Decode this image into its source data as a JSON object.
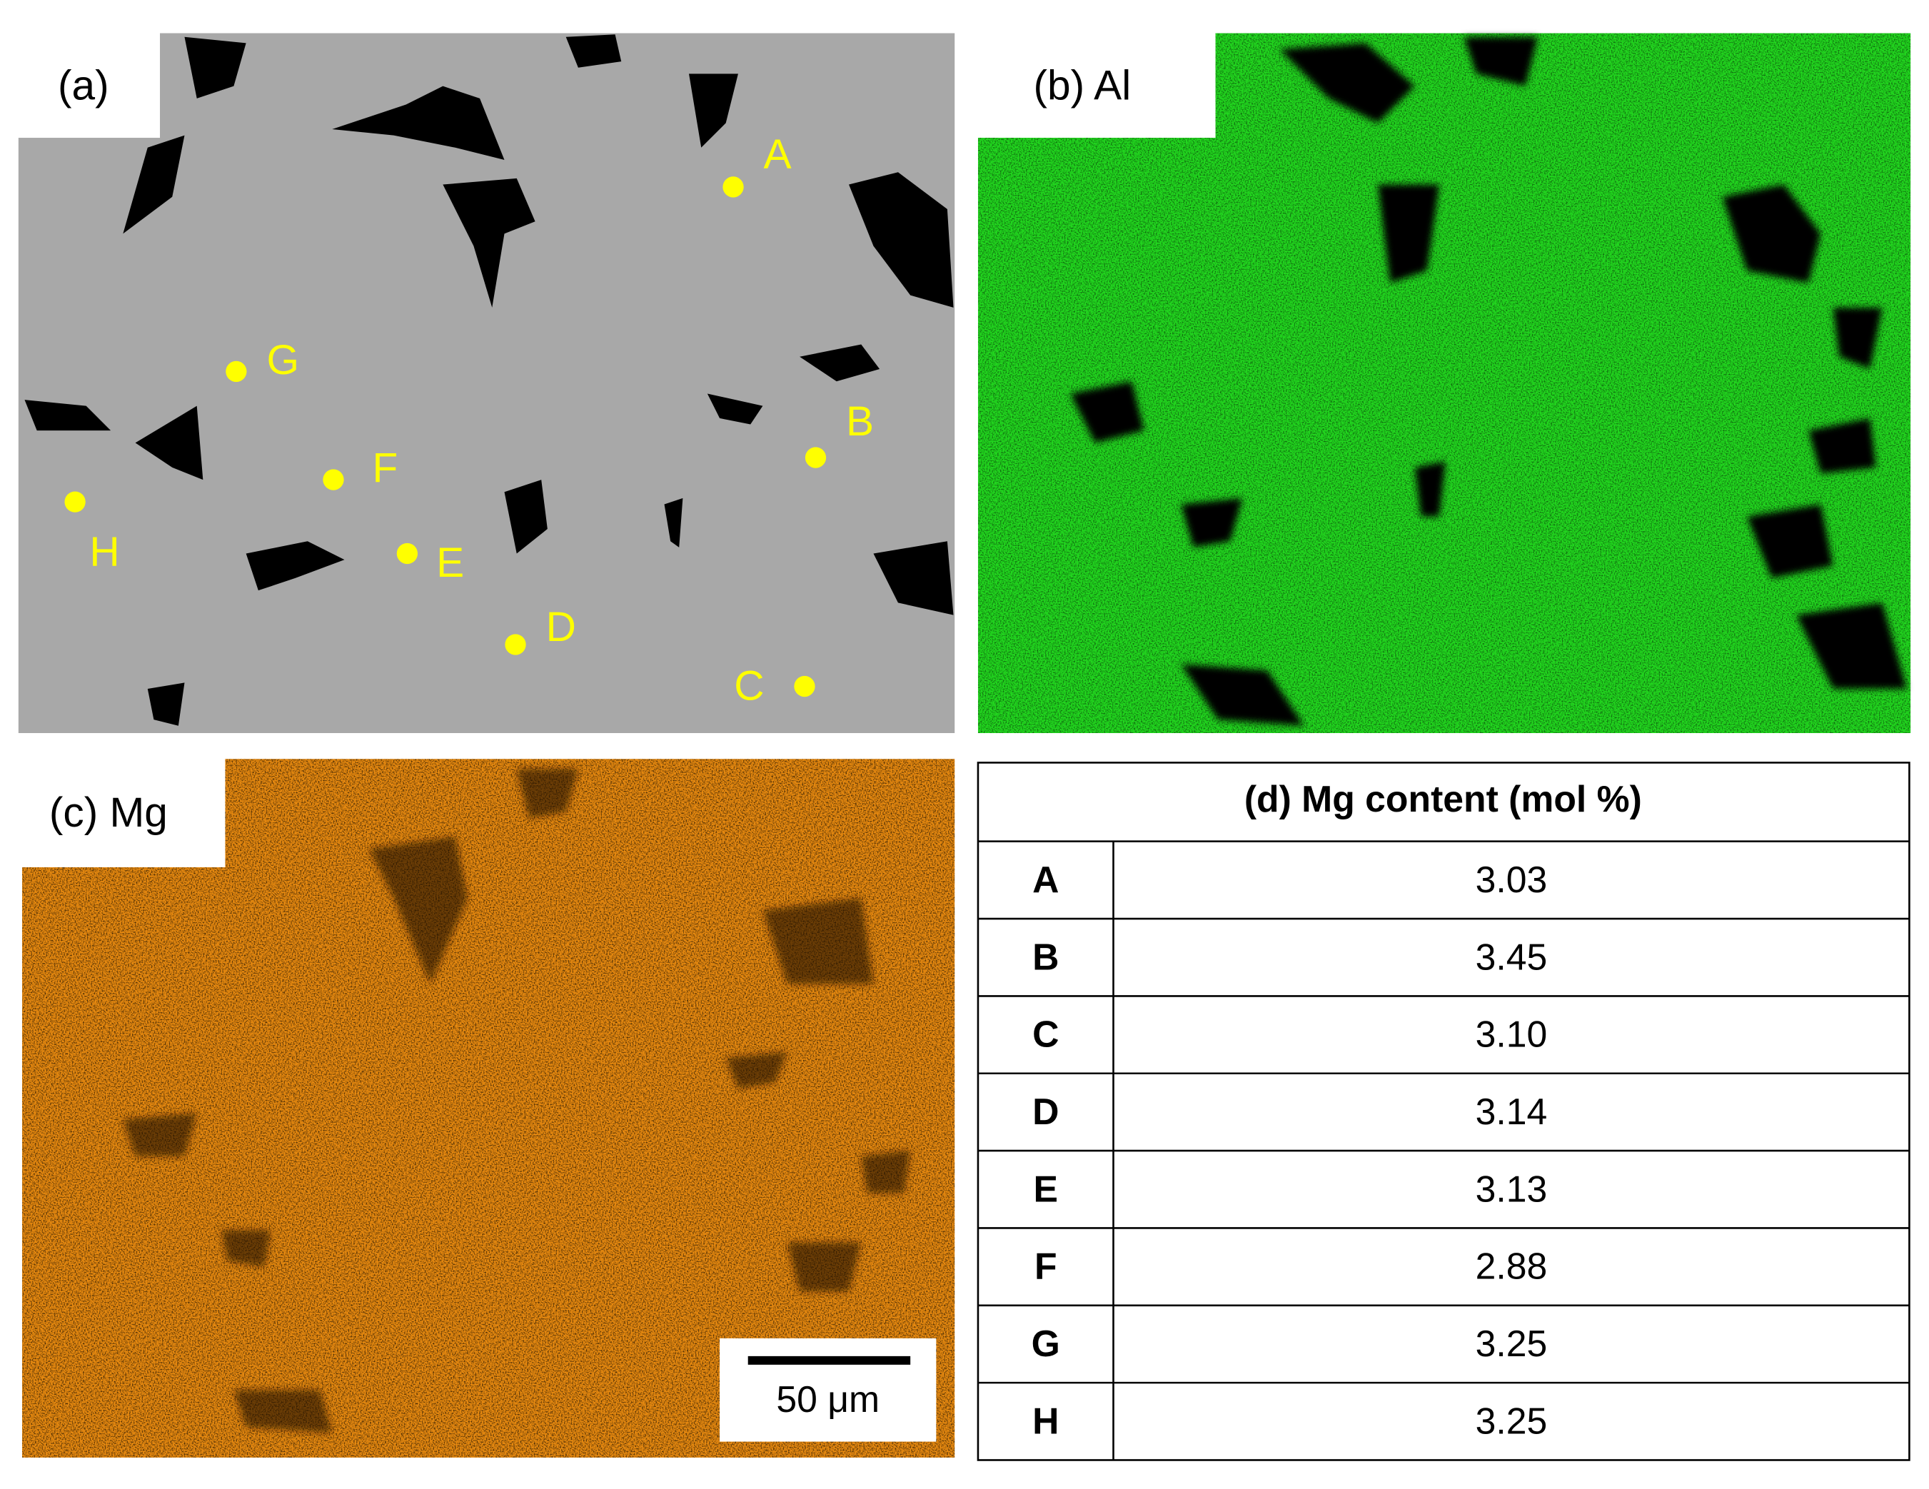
{
  "panels": [
    {
      "label": "(a)"
    },
    {
      "label": "(b) Al"
    },
    {
      "label": "(c) Mg",
      "scale_bar": "50 μm"
    }
  ],
  "points": [
    {
      "label": "A"
    },
    {
      "label": "B"
    },
    {
      "label": "C"
    },
    {
      "label": "D"
    },
    {
      "label": "E"
    },
    {
      "label": "F"
    },
    {
      "label": "G"
    },
    {
      "label": "H"
    }
  ],
  "table": {
    "title": "(d) Mg content (mol %)",
    "rows": [
      [
        "A",
        "3.03"
      ],
      [
        "B",
        "3.45"
      ],
      [
        "C",
        "3.10"
      ],
      [
        "D",
        "3.14"
      ],
      [
        "E",
        "3.13"
      ],
      [
        "F",
        "2.88"
      ],
      [
        "G",
        "3.25"
      ],
      [
        "H",
        "3.25"
      ]
    ]
  }
}
